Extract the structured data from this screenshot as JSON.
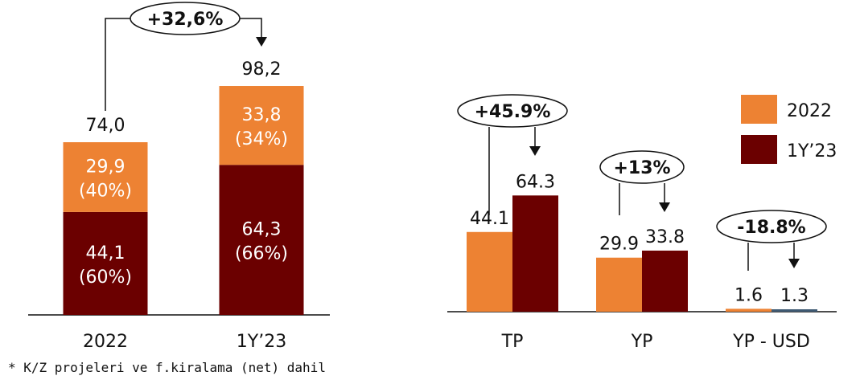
{
  "colors": {
    "orange": "#ED8233",
    "maroon": "#6B0000",
    "blue_grey": "#3F5A73",
    "axis": "#111111"
  },
  "footnote": "* K/Z projeleri ve f.kiralama (net) dahil",
  "chart_data": [
    {
      "type": "bar",
      "stacked": true,
      "categories": [
        "2022",
        "1Y’23"
      ],
      "totals": [
        "74,0",
        "98,2"
      ],
      "series": [
        {
          "values": [
            44.1,
            64.3
          ],
          "labels": [
            "44,1",
            "64,3"
          ],
          "shares": [
            "(60%)",
            "(66%)"
          ],
          "color": "#6B0000"
        },
        {
          "values": [
            29.9,
            33.8
          ],
          "labels": [
            "29,9",
            "33,8"
          ],
          "shares": [
            "(40%)",
            "(34%)"
          ],
          "color": "#ED8233"
        }
      ],
      "annotations": [
        {
          "text": "+32,6%",
          "from": "2022",
          "to": "1Y’23"
        }
      ]
    },
    {
      "type": "bar",
      "categories": [
        "TP",
        "YP",
        "YP - USD"
      ],
      "legend": {
        "position": "top-right",
        "entries": [
          "2022",
          "1Y’23"
        ]
      },
      "series": [
        {
          "name": "2022",
          "values": [
            44.1,
            29.9,
            1.6
          ],
          "labels": [
            "44.1",
            "29.9",
            "1.6"
          ],
          "color": "#ED8233"
        },
        {
          "name": "1Y’23",
          "values": [
            64.3,
            33.8,
            1.3
          ],
          "labels": [
            "64.3",
            "33.8",
            "1.3"
          ],
          "color": "#6B0000"
        }
      ],
      "annotations": [
        {
          "text": "+45.9%",
          "category": "TP"
        },
        {
          "text": "+13%",
          "category": "YP"
        },
        {
          "text": "-18.8%",
          "category": "YP - USD"
        }
      ]
    }
  ]
}
